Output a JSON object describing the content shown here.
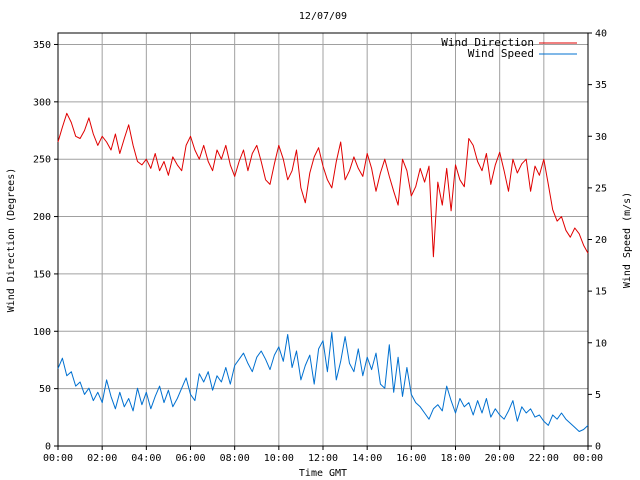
{
  "chart_data": {
    "type": "line",
    "title": "12/07/09",
    "xlabel": "Time GMT",
    "ylabel_left": "Wind Direction (Degrees)",
    "ylabel_right": "Wind Speed (m/s)",
    "x_ticks": [
      "00:00",
      "02:00",
      "04:00",
      "06:00",
      "08:00",
      "10:00",
      "12:00",
      "14:00",
      "16:00",
      "18:00",
      "20:00",
      "22:00",
      "00:00"
    ],
    "y_left_ticks": [
      "0",
      "50",
      "100",
      "150",
      "200",
      "250",
      "300",
      "350"
    ],
    "y_right_ticks": [
      "0",
      "5",
      "10",
      "15",
      "20",
      "25",
      "30",
      "35",
      "40"
    ],
    "y_left_range": [
      0,
      360
    ],
    "y_right_range": [
      0,
      40
    ],
    "x_range_hours": [
      0,
      24
    ],
    "grid": true,
    "legend_position": "top-right",
    "series": [
      {
        "name": "Wind Direction",
        "axis": "left",
        "color": "#e00000",
        "x": [
          0,
          0.2,
          0.4,
          0.6,
          0.8,
          1,
          1.2,
          1.4,
          1.6,
          1.8,
          2,
          2.2,
          2.4,
          2.6,
          2.8,
          3,
          3.2,
          3.4,
          3.6,
          3.8,
          4,
          4.2,
          4.4,
          4.6,
          4.8,
          5,
          5.2,
          5.4,
          5.6,
          5.8,
          6,
          6.2,
          6.4,
          6.6,
          6.8,
          7,
          7.2,
          7.4,
          7.6,
          7.8,
          8,
          8.2,
          8.4,
          8.6,
          8.8,
          9,
          9.2,
          9.4,
          9.6,
          9.8,
          10,
          10.2,
          10.4,
          10.6,
          10.8,
          11,
          11.2,
          11.4,
          11.6,
          11.8,
          12,
          12.2,
          12.4,
          12.6,
          12.8,
          13,
          13.2,
          13.4,
          13.6,
          13.8,
          14,
          14.2,
          14.4,
          14.6,
          14.8,
          15,
          15.2,
          15.4,
          15.6,
          15.8,
          16,
          16.2,
          16.4,
          16.6,
          16.8,
          17,
          17.2,
          17.4,
          17.6,
          17.8,
          18,
          18.2,
          18.4,
          18.6,
          18.8,
          19,
          19.2,
          19.4,
          19.6,
          19.8,
          20,
          20.2,
          20.4,
          20.6,
          20.8,
          21,
          21.2,
          21.4,
          21.6,
          21.8,
          22,
          22.2,
          22.4,
          22.6,
          22.8,
          23,
          23.2,
          23.4,
          23.6,
          23.8,
          24
        ],
        "values": [
          265,
          278,
          290,
          282,
          270,
          268,
          275,
          286,
          272,
          262,
          270,
          265,
          258,
          272,
          255,
          268,
          280,
          262,
          248,
          245,
          250,
          242,
          255,
          240,
          248,
          236,
          252,
          245,
          240,
          262,
          270,
          258,
          250,
          262,
          248,
          240,
          258,
          250,
          262,
          245,
          235,
          248,
          258,
          240,
          255,
          262,
          248,
          232,
          228,
          246,
          262,
          250,
          232,
          240,
          258,
          225,
          212,
          238,
          252,
          260,
          244,
          232,
          225,
          248,
          265,
          232,
          240,
          252,
          242,
          235,
          255,
          242,
          222,
          238,
          250,
          235,
          222,
          210,
          250,
          240,
          218,
          226,
          242,
          230,
          244,
          165,
          230,
          210,
          242,
          205,
          245,
          232,
          226,
          268,
          262,
          248,
          240,
          255,
          228,
          245,
          256,
          240,
          222,
          250,
          238,
          246,
          250,
          222,
          244,
          236,
          250,
          228,
          206,
          196,
          200,
          188,
          182,
          190,
          185,
          175,
          168
        ],
        "extra_marks": []
      },
      {
        "name": "Wind Speed",
        "axis": "right",
        "color": "#0070d0",
        "x": [
          0,
          0.2,
          0.4,
          0.6,
          0.8,
          1,
          1.2,
          1.4,
          1.6,
          1.8,
          2,
          2.2,
          2.4,
          2.6,
          2.8,
          3,
          3.2,
          3.4,
          3.6,
          3.8,
          4,
          4.2,
          4.4,
          4.6,
          4.8,
          5,
          5.2,
          5.4,
          5.6,
          5.8,
          6,
          6.2,
          6.4,
          6.6,
          6.8,
          7,
          7.2,
          7.4,
          7.6,
          7.8,
          8,
          8.2,
          8.4,
          8.6,
          8.8,
          9,
          9.2,
          9.4,
          9.6,
          9.8,
          10,
          10.2,
          10.4,
          10.6,
          10.8,
          11,
          11.2,
          11.4,
          11.6,
          11.8,
          12,
          12.2,
          12.4,
          12.6,
          12.8,
          13,
          13.2,
          13.4,
          13.6,
          13.8,
          14,
          14.2,
          14.4,
          14.6,
          14.8,
          15,
          15.2,
          15.4,
          15.6,
          15.8,
          16,
          16.2,
          16.4,
          16.6,
          16.8,
          17,
          17.2,
          17.4,
          17.6,
          17.8,
          18,
          18.2,
          18.4,
          18.6,
          18.8,
          19,
          19.2,
          19.4,
          19.6,
          19.8,
          20,
          20.2,
          20.4,
          20.6,
          20.8,
          21,
          21.2,
          21.4,
          21.6,
          21.8,
          22,
          22.2,
          22.4,
          22.6,
          22.8,
          23,
          23.2,
          23.4,
          23.6,
          23.8,
          24
        ],
        "values": [
          7.5,
          8.5,
          6.8,
          7.2,
          5.8,
          6.2,
          5.0,
          5.6,
          4.4,
          5.2,
          4.2,
          6.4,
          4.8,
          3.6,
          5.2,
          3.8,
          4.6,
          3.4,
          5.6,
          4.0,
          5.2,
          3.6,
          4.8,
          5.8,
          4.2,
          5.4,
          3.8,
          4.6,
          5.6,
          6.6,
          5.0,
          4.4,
          7.0,
          6.2,
          7.2,
          5.4,
          6.8,
          6.2,
          7.6,
          6.0,
          7.8,
          8.4,
          9.0,
          8.0,
          7.2,
          8.6,
          9.2,
          8.4,
          7.4,
          8.8,
          9.6,
          8.2,
          10.8,
          7.6,
          9.2,
          6.4,
          7.8,
          8.8,
          6.0,
          9.4,
          10.2,
          7.2,
          11.0,
          6.4,
          8.2,
          10.6,
          8.0,
          7.2,
          9.4,
          6.8,
          8.6,
          7.4,
          9.0,
          6.0,
          5.6,
          9.8,
          5.2,
          8.6,
          4.8,
          7.6,
          5.0,
          4.2,
          3.8,
          3.2,
          2.6,
          3.6,
          4.0,
          3.4,
          5.8,
          4.4,
          3.2,
          4.6,
          3.8,
          4.2,
          3.0,
          4.4,
          3.2,
          4.6,
          2.8,
          3.6,
          3.0,
          2.6,
          3.4,
          4.4,
          2.4,
          3.8,
          3.2,
          3.6,
          2.8,
          3.0,
          2.4,
          2.0,
          3.0,
          2.6,
          3.2,
          2.6,
          2.2,
          1.8,
          1.4,
          1.6,
          2.0
        ],
        "extra_marks": []
      }
    ]
  }
}
